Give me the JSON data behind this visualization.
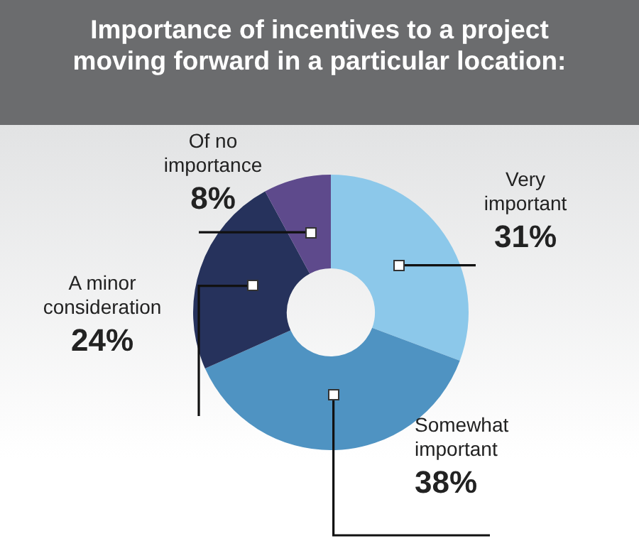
{
  "chart_data": {
    "type": "donut",
    "title": "Importance of incentives to a project moving forward in a particular location:",
    "categories": [
      "Very important",
      "Somewhat important",
      "A minor consideration",
      "Of no importance"
    ],
    "values": [
      31,
      38,
      24,
      8
    ],
    "value_labels": [
      "31%",
      "38%",
      "24%",
      "8%"
    ],
    "colors": [
      "#8cc8ea",
      "#4f93c2",
      "#26325c",
      "#5e4a8c"
    ],
    "legend": false
  }
}
